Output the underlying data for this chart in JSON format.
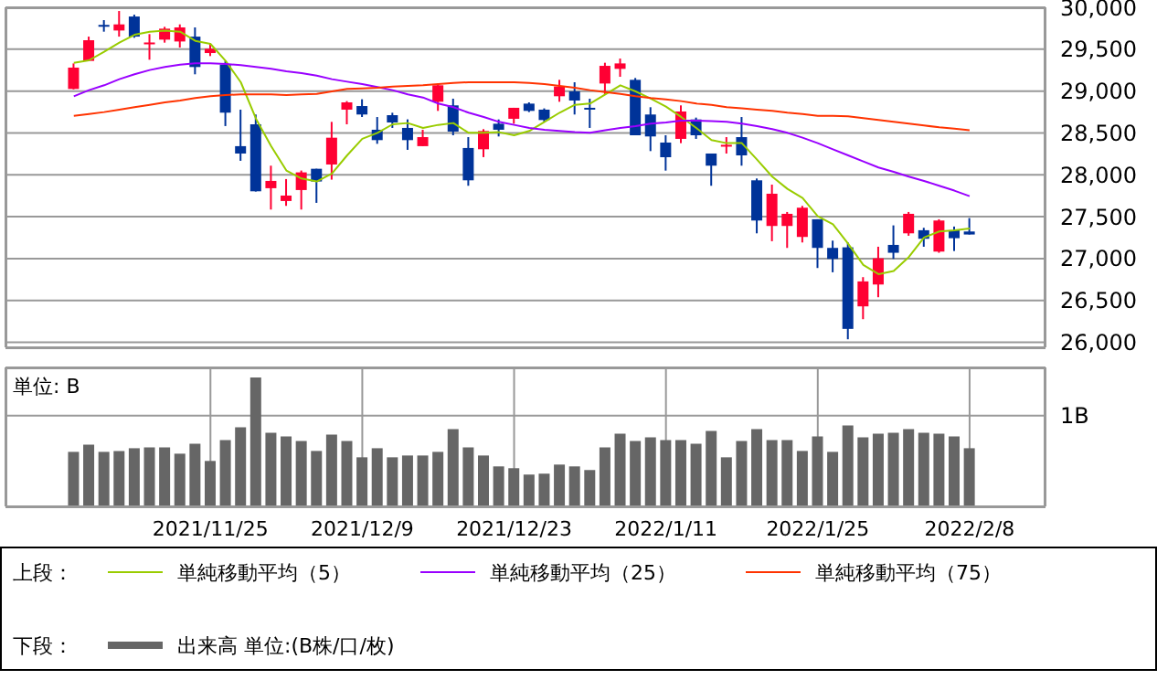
{
  "chart_data": [
    {
      "type": "candlestick",
      "categories": [
        null,
        null,
        null,
        null,
        null,
        null,
        null,
        null,
        null,
        "2021/11/25",
        null,
        null,
        null,
        null,
        null,
        null,
        null,
        null,
        null,
        "2021/12/9",
        null,
        null,
        null,
        null,
        null,
        null,
        null,
        null,
        null,
        "2021/12/23",
        null,
        null,
        null,
        null,
        null,
        null,
        null,
        null,
        null,
        "2022/1/11",
        null,
        null,
        null,
        null,
        null,
        null,
        null,
        null,
        null,
        "2022/1/25",
        null,
        null,
        null,
        null,
        null,
        null,
        null,
        null,
        null,
        "2022/2/8"
      ],
      "ohlc": [
        [
          29025,
          29330,
          29020,
          29280
        ],
        [
          29360,
          29650,
          29360,
          29607
        ],
        [
          29790,
          29847,
          29709,
          29775
        ],
        [
          29723,
          29956,
          29650,
          29796
        ],
        [
          29890,
          29912,
          29636,
          29650
        ],
        [
          29570,
          29680,
          29374,
          29580
        ],
        [
          29614,
          29767,
          29578,
          29745
        ],
        [
          29592,
          29796,
          29520,
          29760
        ],
        [
          29650,
          29760,
          29200,
          29287
        ],
        [
          29454,
          29563,
          29418,
          29505
        ],
        [
          29316,
          29360,
          28582,
          28742
        ],
        [
          28342,
          28778,
          28167,
          28254
        ],
        [
          28603,
          28720,
          27800,
          27803
        ],
        [
          27840,
          28109,
          27585,
          27927
        ],
        [
          27687,
          27949,
          27629,
          27752
        ],
        [
          27818,
          28051,
          27585,
          28029
        ],
        [
          28072,
          28072,
          27665,
          27920
        ],
        [
          28123,
          28632,
          27942,
          28443
        ],
        [
          28778,
          28880,
          28603,
          28865
        ],
        [
          28821,
          28902,
          28690,
          28720
        ],
        [
          28538,
          28690,
          28370,
          28414
        ],
        [
          28712,
          28741,
          28560,
          28625
        ],
        [
          28560,
          28662,
          28298,
          28414
        ],
        [
          28342,
          28538,
          28342,
          28450
        ],
        [
          28872,
          29090,
          28763,
          29069
        ],
        [
          28829,
          28909,
          28472,
          28516
        ],
        [
          28320,
          28450,
          27869,
          27934
        ],
        [
          28305,
          28545,
          28211,
          28523
        ],
        [
          28610,
          28661,
          28458,
          28538
        ],
        [
          28669,
          28800,
          28610,
          28800
        ],
        [
          28850,
          28865,
          28749,
          28763
        ],
        [
          28778,
          28793,
          28632,
          28654
        ],
        [
          28938,
          29134,
          28872,
          29054
        ],
        [
          28996,
          29105,
          28720,
          28887
        ],
        [
          28800,
          28909,
          28560,
          28790
        ],
        [
          29090,
          29338,
          28960,
          29301
        ],
        [
          29265,
          29388,
          29170,
          29330
        ],
        [
          29134,
          29156,
          28472,
          28472
        ],
        [
          28720,
          28807,
          28283,
          28458
        ],
        [
          28385,
          28472,
          28050,
          28210
        ],
        [
          28429,
          28829,
          28378,
          28756
        ],
        [
          28661,
          28683,
          28429,
          28472
        ],
        [
          28254,
          28254,
          27869,
          28109
        ],
        [
          28350,
          28450,
          28254,
          28358
        ],
        [
          28450,
          28690,
          28109,
          28232
        ],
        [
          27934,
          27956,
          27301,
          27454
        ],
        [
          27389,
          27883,
          27207,
          27774
        ],
        [
          27389,
          27556,
          27127,
          27534
        ],
        [
          27258,
          27629,
          27192,
          27607
        ],
        [
          27469,
          27469,
          26887,
          27127
        ],
        [
          27127,
          27214,
          26836,
          26996
        ],
        [
          27134,
          27192,
          26036,
          26160
        ],
        [
          26429,
          26778,
          26276,
          26727
        ],
        [
          26690,
          27141,
          26538,
          27003
        ],
        [
          27163,
          27396,
          26996,
          27069
        ],
        [
          27301,
          27556,
          27272,
          27534
        ],
        [
          27338,
          27367,
          27141,
          27236
        ],
        [
          27083,
          27469,
          27069,
          27454
        ],
        [
          27338,
          27382,
          27090,
          27243
        ],
        [
          27323,
          27483,
          27287,
          27287
        ]
      ],
      "colors": [
        "#ff0033",
        "#ff0033",
        "#003399",
        "#ff0033",
        "#003399",
        "#ff0033",
        "#ff0033",
        "#ff0033",
        "#003399",
        "#ff0033",
        "#003399",
        "#003399",
        "#003399",
        "#ff0033",
        "#ff0033",
        "#ff0033",
        "#003399",
        "#ff0033",
        "#ff0033",
        "#003399",
        "#003399",
        "#003399",
        "#003399",
        "#ff0033",
        "#ff0033",
        "#003399",
        "#003399",
        "#ff0033",
        "#003399",
        "#ff0033",
        "#003399",
        "#003399",
        "#ff0033",
        "#003399",
        "#003399",
        "#ff0033",
        "#ff0033",
        "#003399",
        "#003399",
        "#003399",
        "#ff0033",
        "#003399",
        "#003399",
        "#ff0033",
        "#003399",
        "#003399",
        "#ff0033",
        "#ff0033",
        "#ff0033",
        "#003399",
        "#003399",
        "#003399",
        "#ff0033",
        "#ff0033",
        "#003399",
        "#ff0033",
        "#003399",
        "#ff0033",
        "#003399",
        "#003399"
      ],
      "series": [
        {
          "type": "line",
          "name": "単純移動平均（5）",
          "color": "#99cc00",
          "values": [
            29338,
            29367,
            29469,
            29578,
            29672,
            29709,
            29723,
            29709,
            29600,
            29563,
            29360,
            29105,
            28669,
            28342,
            28051,
            27956,
            27920,
            28014,
            28232,
            28429,
            28501,
            28603,
            28618,
            28560,
            28596,
            28618,
            28501,
            28501,
            28509,
            28472,
            28523,
            28632,
            28742,
            28836,
            28851,
            28960,
            29069,
            28996,
            28909,
            28814,
            28691,
            28560,
            28414,
            28378,
            28378,
            28182,
            27978,
            27832,
            27723,
            27505,
            27410,
            27178,
            26923,
            26814,
            26851,
            27018,
            27251,
            27323,
            27338,
            27360
          ]
        },
        {
          "type": "line",
          "name": "単純移動平均（25）",
          "color": "#9900ff",
          "values": [
            28938,
            29011,
            29069,
            29142,
            29200,
            29251,
            29287,
            29316,
            29331,
            29331,
            29323,
            29309,
            29287,
            29265,
            29236,
            29214,
            29185,
            29142,
            29112,
            29083,
            29047,
            29011,
            28960,
            28923,
            28851,
            28807,
            28742,
            28691,
            28632,
            28596,
            28560,
            28538,
            28523,
            28509,
            28501,
            28531,
            28560,
            28581,
            28611,
            28625,
            28647,
            28647,
            28640,
            28632,
            28611,
            28581,
            28545,
            28501,
            28443,
            28378,
            28305,
            28232,
            28160,
            28087,
            28036,
            27978,
            27927,
            27869,
            27811,
            27745
          ]
        },
        {
          "type": "line",
          "name": "単純移動平均（75）",
          "color": "#ff3300",
          "values": [
            28705,
            28727,
            28749,
            28778,
            28807,
            28836,
            28865,
            28887,
            28916,
            28938,
            28952,
            28960,
            28960,
            28960,
            28952,
            28960,
            28967,
            28996,
            29025,
            29032,
            29040,
            29054,
            29062,
            29069,
            29083,
            29098,
            29105,
            29105,
            29105,
            29105,
            29098,
            29083,
            29062,
            29040,
            29011,
            28989,
            28967,
            28938,
            28916,
            28901,
            28880,
            28851,
            28836,
            28807,
            28793,
            28778,
            28763,
            28742,
            28727,
            28705,
            28705,
            28698,
            28676,
            28654,
            28632,
            28611,
            28589,
            28567,
            28552,
            28531
          ]
        }
      ],
      "ylim": [
        25940,
        30000
      ],
      "yticks": [
        {
          "value": 26000,
          "label": "26,000"
        },
        {
          "value": 26500,
          "label": "26,500"
        },
        {
          "value": 27000,
          "label": "27,000"
        },
        {
          "value": 27500,
          "label": "27,500"
        },
        {
          "value": 28000,
          "label": "28,000"
        },
        {
          "value": 28500,
          "label": "28,500"
        },
        {
          "value": 29000,
          "label": "29,000"
        },
        {
          "value": 29500,
          "label": "29,500"
        },
        {
          "value": 30000,
          "label": "30,000"
        }
      ],
      "grid": true,
      "legend": "bottom",
      "legend_title": "上段：",
      "tick_labels": "y"
    },
    {
      "type": "bar",
      "categories": [
        null,
        null,
        null,
        null,
        null,
        null,
        null,
        null,
        null,
        "2021/11/25",
        null,
        null,
        null,
        null,
        null,
        null,
        null,
        null,
        null,
        "2021/12/9",
        null,
        null,
        null,
        null,
        null,
        null,
        null,
        null,
        null,
        "2021/12/23",
        null,
        null,
        null,
        null,
        null,
        null,
        null,
        null,
        null,
        "2022/1/11",
        null,
        null,
        null,
        null,
        null,
        null,
        null,
        null,
        null,
        "2022/1/25",
        null,
        null,
        null,
        null,
        null,
        null,
        null,
        null,
        null,
        "2022/2/8"
      ],
      "series": [
        {
          "name": "出来高 単位:(B株/口/枚)",
          "color": "#666666",
          "values": [
            0.6,
            0.68,
            0.6,
            0.61,
            0.64,
            0.65,
            0.65,
            0.58,
            0.69,
            0.5,
            0.73,
            0.87,
            1.42,
            0.81,
            0.77,
            0.72,
            0.61,
            0.79,
            0.72,
            0.54,
            0.64,
            0.54,
            0.56,
            0.56,
            0.6,
            0.85,
            0.65,
            0.56,
            0.44,
            0.42,
            0.35,
            0.36,
            0.46,
            0.44,
            0.4,
            0.65,
            0.8,
            0.72,
            0.76,
            0.73,
            0.73,
            0.69,
            0.83,
            0.54,
            0.72,
            0.85,
            0.73,
            0.73,
            0.61,
            0.77,
            0.6,
            0.89,
            0.76,
            0.8,
            0.81,
            0.85,
            0.81,
            0.8,
            0.77,
            0.64
          ]
        }
      ],
      "ylim": [
        0,
        1.53
      ],
      "yticks": [
        {
          "value": 1,
          "label": "1B"
        }
      ],
      "annotations": [
        "単位: B"
      ],
      "grid": true,
      "legend": "bottom",
      "legend_title": "下段："
    }
  ]
}
